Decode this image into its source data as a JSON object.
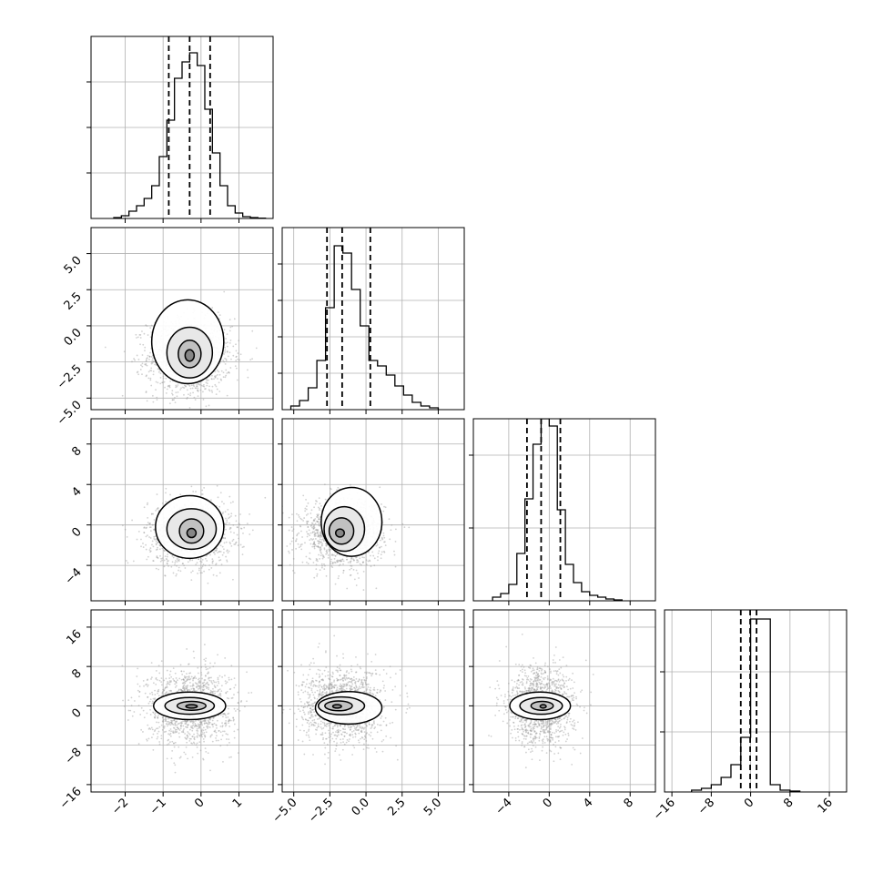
{
  "chart_data": {
    "type": "corner",
    "title": "",
    "n_parameters": 4,
    "parameter_labels": [
      "",
      "",
      "",
      ""
    ],
    "axis_ranges": [
      [
        -2.9,
        1.9
      ],
      [
        -5.8,
        6.8
      ],
      [
        -7.5,
        10.5
      ],
      [
        -17.5,
        19.5
      ]
    ],
    "ticks": [
      {
        "values": [
          -2,
          -1,
          0,
          1
        ],
        "labels": [
          "−2",
          "−1",
          "0",
          "1"
        ]
      },
      {
        "values": [
          -5,
          -2.5,
          0,
          2.5,
          5
        ],
        "labels": [
          "−5.0",
          "−2.5",
          "0.0",
          "2.5",
          "5.0"
        ]
      },
      {
        "values": [
          -4,
          0,
          4,
          8
        ],
        "labels": [
          "−4",
          "0",
          "4",
          "8"
        ]
      },
      {
        "values": [
          -16,
          -8,
          0,
          8,
          16
        ],
        "labels": [
          "−16",
          "−8",
          "0",
          "8",
          "16"
        ]
      }
    ],
    "diag_y_gridlines": [
      [
        0.25,
        0.5,
        0.75
      ],
      [
        0.2,
        0.4,
        0.6,
        0.8
      ],
      [
        0.4,
        0.8
      ],
      [
        0.33,
        0.66
      ]
    ],
    "histograms": [
      {
        "bins": [
          -2.3,
          -2.1,
          -1.9,
          -1.7,
          -1.5,
          -1.3,
          -1.1,
          -0.9,
          -0.7,
          -0.5,
          -0.3,
          -0.1,
          0.1,
          0.3,
          0.5,
          0.7,
          0.9,
          1.1,
          1.3,
          1.5,
          1.7
        ],
        "values": [
          0.005,
          0.015,
          0.04,
          0.07,
          0.11,
          0.18,
          0.34,
          0.54,
          0.77,
          0.86,
          0.91,
          0.84,
          0.6,
          0.36,
          0.18,
          0.07,
          0.03,
          0.01,
          0.005,
          0.002
        ]
      },
      {
        "bins": [
          -5.2,
          -4.6,
          -4.0,
          -3.4,
          -2.8,
          -2.2,
          -1.6,
          -1.0,
          -0.4,
          0.2,
          0.8,
          1.4,
          2.0,
          2.6,
          3.2,
          3.8,
          4.4,
          5.0
        ],
        "values": [
          0.02,
          0.05,
          0.12,
          0.27,
          0.56,
          0.9,
          0.86,
          0.66,
          0.46,
          0.27,
          0.24,
          0.19,
          0.13,
          0.08,
          0.04,
          0.02,
          0.01
        ]
      },
      {
        "bins": [
          -5.6,
          -4.8,
          -4.0,
          -3.2,
          -2.4,
          -1.6,
          -0.8,
          0.0,
          0.8,
          1.6,
          2.4,
          3.2,
          4.0,
          4.8,
          5.6,
          6.4,
          7.2
        ],
        "values": [
          0.02,
          0.04,
          0.09,
          0.26,
          0.56,
          0.86,
          1.0,
          0.96,
          0.5,
          0.2,
          0.1,
          0.05,
          0.03,
          0.02,
          0.01,
          0.005
        ]
      },
      {
        "bins": [
          -12,
          -10,
          -8,
          -6,
          -4,
          -2,
          0,
          2,
          4,
          6,
          8,
          10
        ],
        "values": [
          0.01,
          0.02,
          0.04,
          0.08,
          0.15,
          0.3,
          0.95,
          0.95,
          0.04,
          0.01,
          0.005
        ]
      }
    ],
    "quantiles": [
      [
        -0.85,
        -0.3,
        0.24
      ],
      [
        -2.7,
        -1.65,
        0.3
      ],
      [
        -2.2,
        -0.8,
        1.1
      ],
      [
        -2.0,
        -0.1,
        1.2
      ]
    ],
    "pairs": [
      {
        "row": 1,
        "col": 0,
        "center": [
          -0.3,
          -2.1
        ],
        "spread": [
          0.55,
          1.3
        ],
        "contours": [
          {
            "cx": -0.3,
            "cy": -2.05,
            "rx": 0.12,
            "ry": 0.4
          },
          {
            "cx": -0.3,
            "cy": -1.95,
            "rx": 0.3,
            "ry": 0.95
          },
          {
            "cx": -0.3,
            "cy": -1.85,
            "rx": 0.6,
            "ry": 1.75
          },
          {
            "cx": -0.35,
            "cy": -1.1,
            "rx": 0.95,
            "ry": 2.9
          }
        ]
      },
      {
        "row": 2,
        "col": 0,
        "center": [
          -0.3,
          -0.8
        ],
        "spread": [
          0.55,
          1.6
        ],
        "contours": [
          {
            "cx": -0.25,
            "cy": -0.8,
            "rx": 0.12,
            "ry": 0.45
          },
          {
            "cx": -0.25,
            "cy": -0.6,
            "rx": 0.32,
            "ry": 1.2
          },
          {
            "cx": -0.25,
            "cy": -0.4,
            "rx": 0.65,
            "ry": 2.0
          },
          {
            "cx": -0.3,
            "cy": -0.2,
            "rx": 0.9,
            "ry": 3.1
          }
        ]
      },
      {
        "row": 2,
        "col": 1,
        "center": [
          -1.6,
          -0.8
        ],
        "spread": [
          1.4,
          1.6
        ],
        "contours": [
          {
            "cx": -1.8,
            "cy": -0.8,
            "rx": 0.3,
            "ry": 0.4
          },
          {
            "cx": -1.7,
            "cy": -0.6,
            "rx": 0.85,
            "ry": 1.3
          },
          {
            "cx": -1.5,
            "cy": -0.4,
            "rx": 1.4,
            "ry": 2.2
          },
          {
            "cx": -1.0,
            "cy": 0.3,
            "rx": 2.1,
            "ry": 3.4
          }
        ]
      },
      {
        "row": 3,
        "col": 0,
        "center": [
          -0.3,
          -0.1
        ],
        "spread": [
          0.55,
          3.8
        ],
        "contours": [
          {
            "cx": -0.25,
            "cy": -0.1,
            "rx": 0.15,
            "ry": 0.35
          },
          {
            "cx": -0.25,
            "cy": 0.0,
            "rx": 0.38,
            "ry": 0.9
          },
          {
            "cx": -0.3,
            "cy": 0.0,
            "rx": 0.65,
            "ry": 1.7
          },
          {
            "cx": -0.3,
            "cy": 0.0,
            "rx": 0.95,
            "ry": 2.8
          }
        ]
      },
      {
        "row": 3,
        "col": 1,
        "center": [
          -1.6,
          -0.1
        ],
        "spread": [
          1.4,
          3.8
        ],
        "contours": [
          {
            "cx": -2.0,
            "cy": -0.1,
            "rx": 0.3,
            "ry": 0.35
          },
          {
            "cx": -1.9,
            "cy": 0.0,
            "rx": 0.95,
            "ry": 1.0
          },
          {
            "cx": -1.7,
            "cy": 0.0,
            "rx": 1.6,
            "ry": 1.8
          },
          {
            "cx": -1.2,
            "cy": -0.4,
            "rx": 2.3,
            "ry": 3.3
          }
        ]
      },
      {
        "row": 3,
        "col": 2,
        "center": [
          -0.8,
          -0.1
        ],
        "spread": [
          1.6,
          3.8
        ],
        "contours": [
          {
            "cx": -0.6,
            "cy": -0.1,
            "rx": 0.3,
            "ry": 0.35
          },
          {
            "cx": -0.7,
            "cy": 0.0,
            "rx": 1.1,
            "ry": 0.9
          },
          {
            "cx": -0.8,
            "cy": 0.0,
            "rx": 2.1,
            "ry": 1.7
          },
          {
            "cx": -0.9,
            "cy": 0.0,
            "rx": 3.0,
            "ry": 2.8
          }
        ]
      }
    ],
    "colors": {
      "line": "#000000",
      "scatter": "#9a9a9a",
      "grid": "#b0b0b0",
      "density": "#7a7a7a"
    }
  }
}
